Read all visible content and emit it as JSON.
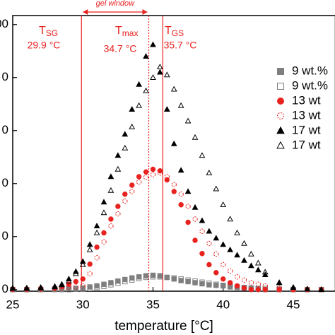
{
  "chart_data": {
    "type": "scatter",
    "x_label": "temperature [°C]",
    "x": [
      25,
      26,
      27,
      28,
      28.5,
      29,
      29.5,
      30,
      30.5,
      31,
      31.5,
      32,
      32.5,
      33,
      33.5,
      34,
      34.5,
      35,
      35.5,
      36,
      36.5,
      37,
      37.5,
      38,
      38.5,
      39,
      39.5,
      40,
      40.5,
      41,
      41.5,
      42,
      42.5,
      43,
      44,
      45,
      46,
      47
    ],
    "xlim": [
      25,
      48
    ],
    "xticks": [
      25,
      30,
      35,
      40,
      45
    ],
    "ylim": [
      -3,
      517
    ],
    "yticks": [
      {
        "value": 0,
        "label": "0"
      },
      {
        "value": 100,
        "label": "0"
      },
      {
        "value": 200,
        "label": "0"
      },
      {
        "value": 300,
        "label": "0"
      },
      {
        "value": 400,
        "label": "0"
      },
      {
        "value": 500,
        "label": "00"
      }
    ],
    "series": [
      {
        "name": "9 wt.%",
        "color": "#7f7f7f",
        "marker": "square",
        "filled": true,
        "values": [
          0,
          0,
          0,
          1,
          1,
          2,
          2,
          3,
          5,
          7,
          10,
          13,
          16,
          19,
          22,
          24,
          26,
          27,
          26,
          23,
          20,
          17,
          15,
          13,
          11,
          9,
          8,
          7,
          5,
          4,
          3,
          2,
          1,
          0,
          0,
          0,
          0,
          0
        ]
      },
      {
        "name": "9 wt.%",
        "color": "#7f7f7f",
        "marker": "square",
        "filled": false,
        "values": [
          0,
          0,
          0,
          0,
          0,
          0,
          1,
          1,
          2,
          4,
          6,
          9,
          12,
          15,
          18,
          21,
          23,
          24,
          24,
          23,
          22,
          20,
          18,
          16,
          14,
          12,
          10,
          8,
          7,
          5,
          4,
          3,
          2,
          2,
          1,
          0,
          0,
          0
        ]
      },
      {
        "name": "13 wt",
        "color": "#e8221f",
        "marker": "circle",
        "filled": true,
        "values": [
          1,
          1,
          2,
          3,
          6,
          10,
          15,
          20,
          48,
          80,
          107,
          133,
          157,
          180,
          197,
          213,
          222,
          227,
          224,
          207,
          185,
          160,
          127,
          93,
          68,
          47,
          32,
          20,
          13,
          7,
          3,
          0,
          0,
          0,
          0,
          0,
          0,
          0
        ]
      },
      {
        "name": "13 wt",
        "color": "#e8221f",
        "marker": "circle",
        "filled": false,
        "values": [
          0,
          0,
          1,
          2,
          3,
          4,
          5,
          7,
          30,
          60,
          90,
          120,
          143,
          167,
          185,
          203,
          212,
          217,
          220,
          213,
          198,
          180,
          157,
          133,
          110,
          87,
          67,
          47,
          35,
          24,
          18,
          13,
          10,
          7,
          3,
          0,
          0,
          0
        ]
      },
      {
        "name": "17 wt",
        "color": "#000000",
        "marker": "triangle",
        "filled": true,
        "values": [
          3,
          3,
          4,
          6,
          10,
          20,
          34,
          53,
          85,
          120,
          165,
          213,
          253,
          293,
          340,
          387,
          440,
          462,
          410,
          340,
          275,
          225,
          185,
          155,
          130,
          110,
          97,
          85,
          75,
          65,
          55,
          45,
          37,
          28,
          13,
          4,
          1,
          0
        ]
      },
      {
        "name": "17 wt",
        "color": "#000000",
        "marker": "triangle",
        "filled": false,
        "values": [
          2,
          2,
          3,
          5,
          9,
          16,
          30,
          47,
          75,
          107,
          145,
          187,
          227,
          267,
          307,
          347,
          375,
          400,
          420,
          405,
          378,
          347,
          318,
          287,
          253,
          220,
          190,
          160,
          133,
          107,
          87,
          67,
          50,
          33,
          13,
          4,
          1,
          0
        ]
      }
    ],
    "annotations": [
      {
        "symbol": "T",
        "subscript": "SG",
        "text": "29.9 °C",
        "x": 29.9,
        "line": "solid"
      },
      {
        "symbol": "T",
        "subscript": "max",
        "text": "34.7 °C",
        "x": 34.7,
        "line": "dotted"
      },
      {
        "symbol": "T",
        "subscript": "GS",
        "text": "35.7 °C",
        "x": 35.7,
        "line": "solid"
      }
    ],
    "window_label": "gel window",
    "annotation_color": "#e8221f"
  }
}
